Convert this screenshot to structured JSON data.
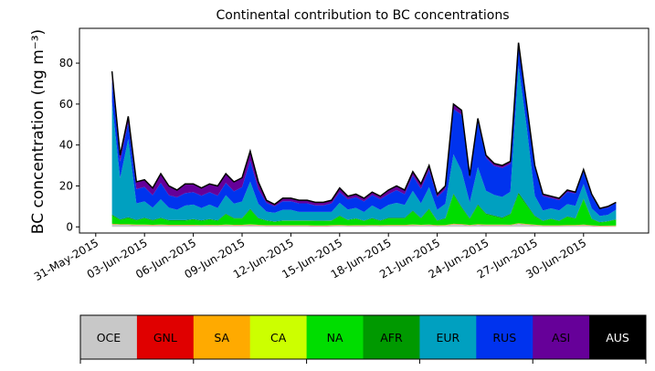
{
  "chart_data": {
    "type": "area",
    "stacked": true,
    "title": "Continental contribution to BC concentrations",
    "ylabel": "BC concentration (ng m⁻³)",
    "xlabel": "",
    "x_axis_type": "date",
    "xlim": [
      "2015-05-30",
      "2015-07-04"
    ],
    "ylim": [
      -3,
      97
    ],
    "yticks": [
      0,
      20,
      40,
      60,
      80
    ],
    "xticks": [
      "31-May-2015",
      "03-Jun-2015",
      "06-Jun-2015",
      "09-Jun-2015",
      "12-Jun-2015",
      "15-Jun-2015",
      "18-Jun-2015",
      "21-Jun-2015",
      "24-Jun-2015",
      "27-Jun-2015",
      "30-Jun-2015"
    ],
    "grid": false,
    "x": [
      "2015-06-01",
      "2015-06-01.5",
      "2015-06-02",
      "2015-06-02.5",
      "2015-06-03",
      "2015-06-03.5",
      "2015-06-04",
      "2015-06-04.5",
      "2015-06-05",
      "2015-06-05.5",
      "2015-06-06",
      "2015-06-06.5",
      "2015-06-07",
      "2015-06-07.5",
      "2015-06-08",
      "2015-06-08.5",
      "2015-06-09",
      "2015-06-09.5",
      "2015-06-10",
      "2015-06-10.5",
      "2015-06-11",
      "2015-06-11.5",
      "2015-06-12",
      "2015-06-12.5",
      "2015-06-13",
      "2015-06-13.5",
      "2015-06-14",
      "2015-06-14.5",
      "2015-06-15",
      "2015-06-15.5",
      "2015-06-16",
      "2015-06-16.5",
      "2015-06-17",
      "2015-06-17.5",
      "2015-06-18",
      "2015-06-18.5",
      "2015-06-19",
      "2015-06-19.5",
      "2015-06-20",
      "2015-06-20.5",
      "2015-06-21",
      "2015-06-21.5",
      "2015-06-22",
      "2015-06-22.5",
      "2015-06-23",
      "2015-06-23.5",
      "2015-06-24",
      "2015-06-24.5",
      "2015-06-25",
      "2015-06-25.5",
      "2015-06-26",
      "2015-06-26.5",
      "2015-06-27",
      "2015-06-27.5",
      "2015-06-28",
      "2015-06-28.5",
      "2015-06-29",
      "2015-06-29.5",
      "2015-06-30",
      "2015-06-30.5",
      "2015-07-01",
      "2015-07-01.5",
      "2015-07-02"
    ],
    "x_days": [
      1,
      1.5,
      2,
      2.5,
      3,
      3.5,
      4,
      4.5,
      5,
      5.5,
      6,
      6.5,
      7,
      7.5,
      8,
      8.5,
      9,
      9.5,
      10,
      10.5,
      11,
      11.5,
      12,
      12.5,
      13,
      13.5,
      14,
      14.5,
      15,
      15.5,
      16,
      16.5,
      17,
      17.5,
      18,
      18.5,
      19,
      19.5,
      20,
      20.5,
      21,
      21.5,
      22,
      22.5,
      23,
      23.5,
      24,
      24.5,
      25,
      25.5,
      26,
      26.5,
      27,
      27.5,
      28,
      28.5,
      29,
      29.5,
      30,
      30.5,
      31,
      31.5,
      32
    ],
    "total": [
      76,
      35,
      54,
      22,
      23,
      19,
      26,
      20,
      18,
      21,
      21,
      19,
      21,
      20,
      26,
      22,
      24,
      37,
      22,
      13,
      11,
      14,
      14,
      13,
      13,
      12,
      12,
      13,
      19,
      15,
      16,
      14,
      17,
      15,
      18,
      20,
      18,
      27,
      21,
      30,
      16,
      20,
      60,
      57,
      25,
      53,
      35,
      31,
      30,
      32,
      90,
      60,
      30,
      16,
      15,
      14,
      18,
      17,
      28,
      16,
      9,
      10,
      12
    ],
    "series": [
      {
        "name": "OCE",
        "color": "#c8c8c8",
        "values": [
          1.2,
          1,
          1,
          0.8,
          0.8,
          0.7,
          0.8,
          0.7,
          0.7,
          0.7,
          0.7,
          0.6,
          0.7,
          0.6,
          0.8,
          0.7,
          0.7,
          0.9,
          0.7,
          0.5,
          0.5,
          0.5,
          0.5,
          0.5,
          0.5,
          0.4,
          0.4,
          0.5,
          0.6,
          0.5,
          0.5,
          0.5,
          0.6,
          0.5,
          0.6,
          0.6,
          0.6,
          0.8,
          0.7,
          0.8,
          0.5,
          0.6,
          1.2,
          1.1,
          0.7,
          1,
          0.8,
          0.8,
          0.8,
          0.8,
          1.5,
          1.1,
          0.8,
          0.5,
          0.5,
          0.5,
          0.6,
          0.6,
          0.8,
          0.5,
          0.3,
          0.3,
          0.4
        ]
      },
      {
        "name": "GNL",
        "color": "#e00000",
        "values": [
          0.1,
          0.1,
          0.1,
          0.1,
          0.1,
          0.1,
          0.1,
          0.1,
          0.1,
          0.1,
          0.1,
          0.1,
          0.1,
          0.1,
          0.1,
          0.1,
          0.1,
          0.1,
          0.1,
          0.1,
          0.1,
          0.1,
          0.1,
          0.1,
          0.1,
          0.1,
          0.1,
          0.1,
          0.1,
          0.1,
          0.1,
          0.1,
          0.1,
          0.1,
          0.1,
          0.1,
          0.1,
          0.1,
          0.1,
          0.1,
          0.1,
          0.1,
          0.1,
          0.1,
          0.1,
          0.1,
          0.1,
          0.1,
          0.1,
          0.1,
          0.1,
          0.1,
          0.1,
          0.1,
          0.1,
          0.1,
          0.1,
          0.1,
          0.1,
          0.1,
          0.1,
          0.1,
          0.1
        ]
      },
      {
        "name": "SA",
        "color": "#ffaa00",
        "values": [
          0.1,
          0.1,
          0.1,
          0.1,
          0.1,
          0.1,
          0.1,
          0.1,
          0.1,
          0.1,
          0.1,
          0.1,
          0.1,
          0.1,
          0.1,
          0.1,
          0.1,
          0.1,
          0.1,
          0.1,
          0.1,
          0.1,
          0.1,
          0.1,
          0.1,
          0.1,
          0.1,
          0.1,
          0.1,
          0.1,
          0.1,
          0.1,
          0.1,
          0.1,
          0.1,
          0.1,
          0.1,
          0.1,
          0.1,
          0.1,
          0.1,
          0.1,
          0.1,
          0.1,
          0.1,
          0.1,
          0.1,
          0.1,
          0.1,
          0.1,
          0.1,
          0.1,
          0.1,
          0.1,
          0.1,
          0.1,
          0.1,
          0.1,
          0.1,
          0.1,
          0.1,
          0.1,
          0.1
        ]
      },
      {
        "name": "CA",
        "color": "#ccff00",
        "values": [
          0.1,
          0.1,
          0.1,
          0.1,
          0.1,
          0.1,
          0.1,
          0.1,
          0.1,
          0.1,
          0.1,
          0.1,
          0.1,
          0.1,
          0.1,
          0.1,
          0.1,
          0.1,
          0.1,
          0.1,
          0.1,
          0.1,
          0.1,
          0.1,
          0.1,
          0.1,
          0.1,
          0.1,
          0.1,
          0.1,
          0.1,
          0.1,
          0.1,
          0.1,
          0.1,
          0.1,
          0.1,
          0.1,
          0.1,
          0.1,
          0.1,
          0.1,
          0.1,
          0.1,
          0.1,
          0.1,
          0.1,
          0.1,
          0.1,
          0.1,
          0.1,
          0.1,
          0.1,
          0.1,
          0.1,
          0.1,
          0.1,
          0.1,
          0.1,
          0.1,
          0.1,
          0.1,
          0.1
        ]
      },
      {
        "name": "NA",
        "color": "#00dd00",
        "values": [
          4,
          2,
          3,
          2,
          3,
          2,
          3,
          2,
          2,
          2,
          2.5,
          2,
          2.5,
          2,
          5,
          3,
          3,
          7,
          3,
          2,
          1.5,
          2,
          2,
          2,
          2,
          2,
          2,
          2,
          4,
          2.5,
          3,
          2,
          3,
          2,
          3,
          3,
          3,
          6,
          3,
          7,
          2,
          3,
          14,
          8,
          3,
          9,
          5,
          4,
          3,
          5,
          14,
          9,
          4,
          2,
          3,
          2,
          4,
          3,
          12,
          3,
          1.5,
          2,
          3
        ]
      },
      {
        "name": "AFR",
        "color": "#009900",
        "values": [
          0.5,
          0.3,
          0.4,
          0.3,
          0.3,
          0.3,
          0.3,
          0.3,
          0.3,
          0.3,
          0.3,
          0.3,
          0.3,
          0.3,
          0.3,
          0.3,
          0.3,
          0.4,
          0.3,
          0.2,
          0.2,
          0.2,
          0.2,
          0.2,
          0.2,
          0.2,
          0.2,
          0.2,
          0.3,
          0.2,
          0.2,
          0.2,
          0.3,
          0.2,
          0.3,
          0.3,
          0.3,
          0.4,
          0.3,
          0.4,
          0.2,
          0.3,
          0.6,
          0.5,
          0.3,
          0.5,
          0.4,
          0.4,
          0.4,
          0.4,
          0.8,
          0.6,
          0.4,
          0.2,
          0.2,
          0.2,
          0.3,
          0.3,
          0.4,
          0.2,
          0.2,
          0.2,
          0.2
        ]
      },
      {
        "name": "EUR",
        "color": "#00a0c0",
        "values": [
          55,
          20,
          38,
          8,
          8,
          6,
          9,
          6,
          5,
          7,
          7,
          6,
          7,
          6,
          9,
          7,
          8,
          13,
          7,
          4,
          4,
          5,
          5,
          4,
          4,
          4,
          4,
          4,
          6,
          5,
          5,
          4,
          6,
          5,
          6,
          7,
          6,
          9,
          7,
          10,
          5,
          7,
          19,
          18,
          8,
          18,
          11,
          10,
          10,
          11,
          62,
          38,
          10,
          5,
          5,
          5,
          6,
          6,
          7,
          5,
          3,
          3,
          5
        ]
      },
      {
        "name": "RUS",
        "color": "#0033ee",
        "values": [
          11,
          8,
          8,
          7,
          7,
          6,
          8,
          6,
          6,
          6,
          6,
          6,
          6,
          6,
          6,
          6,
          7,
          10,
          7,
          4,
          3,
          4,
          4,
          4,
          4,
          3,
          3,
          4,
          5,
          5,
          5,
          5,
          5,
          5,
          5,
          6,
          5,
          7,
          7,
          8,
          6,
          7,
          22,
          28,
          12,
          22,
          16,
          14,
          14,
          14,
          10,
          10,
          14,
          7,
          5,
          5,
          6,
          6,
          6,
          6,
          3.5,
          3.5,
          3.5
        ]
      },
      {
        "name": "ASI",
        "color": "#660099",
        "values": [
          4,
          3,
          3,
          3.5,
          3.5,
          3.5,
          4.5,
          4.5,
          3.5,
          4.5,
          4,
          3.7,
          4,
          4.7,
          4.5,
          4.6,
          4.5,
          4.5,
          3.7,
          1.2,
          0.9,
          1.4,
          1.4,
          1.4,
          1.4,
          1.4,
          1.4,
          1.4,
          1.9,
          1.5,
          1.5,
          1.5,
          1.4,
          1.4,
          1.9,
          1.9,
          1.9,
          1.8,
          2.3,
          2.1,
          1.4,
          1.6,
          2.4,
          2.2,
          1.4,
          1.5,
          1.2,
          1.2,
          1.2,
          1.2,
          1,
          1,
          1,
          1,
          0.9,
          0.9,
          0.9,
          0.7,
          0.9,
          0.9,
          0.2,
          0.6,
          0.3
        ]
      },
      {
        "name": "AUS",
        "color": "#000000",
        "values": [
          0.01,
          0.01,
          0.01,
          0.01,
          0.01,
          0.01,
          0.01,
          0.01,
          0.01,
          0.01,
          0.01,
          0.01,
          0.01,
          0.01,
          0.01,
          0.01,
          0.01,
          0.01,
          0.01,
          0.01,
          0.01,
          0.01,
          0.01,
          0.01,
          0.01,
          0.01,
          0.01,
          0.01,
          0.01,
          0.01,
          0.01,
          0.01,
          0.01,
          0.01,
          0.01,
          0.01,
          0.01,
          0.01,
          0.01,
          0.01,
          0.01,
          0.01,
          0.01,
          0.01,
          0.01,
          0.01,
          0.01,
          0.01,
          0.01,
          0.01,
          0.01,
          0.01,
          0.01,
          0.01,
          0.01,
          0.01,
          0.01,
          0.01,
          0.01,
          0.01,
          0.01,
          0.01,
          0.01
        ]
      }
    ],
    "legend": {
      "placement": "bottom",
      "style": "colorbar",
      "entries": [
        {
          "label": "OCE",
          "color": "#c8c8c8",
          "text_color": "#000000"
        },
        {
          "label": "GNL",
          "color": "#e00000",
          "text_color": "#000000"
        },
        {
          "label": "SA",
          "color": "#ffaa00",
          "text_color": "#000000"
        },
        {
          "label": "CA",
          "color": "#ccff00",
          "text_color": "#000000"
        },
        {
          "label": "NA",
          "color": "#00dd00",
          "text_color": "#000000"
        },
        {
          "label": "AFR",
          "color": "#009900",
          "text_color": "#000000"
        },
        {
          "label": "EUR",
          "color": "#00a0c0",
          "text_color": "#000000"
        },
        {
          "label": "RUS",
          "color": "#0033ee",
          "text_color": "#000000"
        },
        {
          "label": "ASI",
          "color": "#660099",
          "text_color": "#000000"
        },
        {
          "label": "AUS",
          "color": "#000000",
          "text_color": "#ffffff"
        }
      ]
    }
  }
}
